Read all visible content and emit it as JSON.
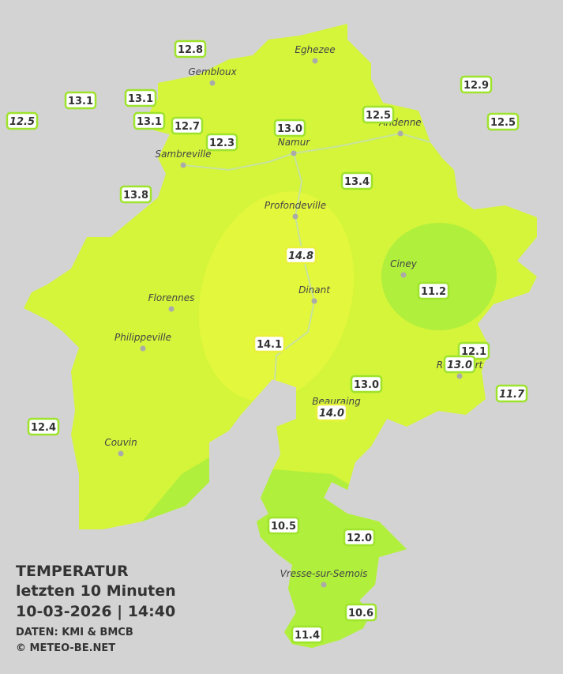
{
  "map": {
    "cities": [
      "Eghezee",
      "Gembloux",
      "Andenne",
      "Namur",
      "Sambreville",
      "Profondeville",
      "Ciney",
      "Florennes",
      "Dinant",
      "Philippeville",
      "Rochefort",
      "Beauraing",
      "Couvin",
      "Vresse-sur-Semois"
    ],
    "stations": [
      {
        "label": "12.8"
      },
      {
        "label": "13.1"
      },
      {
        "label": "13.1"
      },
      {
        "label": "12.5",
        "italic": true
      },
      {
        "label": "13.1"
      },
      {
        "label": "12.7"
      },
      {
        "label": "12.3"
      },
      {
        "label": "13.0"
      },
      {
        "label": "12.5"
      },
      {
        "label": "12.9"
      },
      {
        "label": "12.5"
      },
      {
        "label": "13.8"
      },
      {
        "label": "13.4"
      },
      {
        "label": "14.8",
        "italic": true
      },
      {
        "label": "11.2"
      },
      {
        "label": "14.1"
      },
      {
        "label": "12.1"
      },
      {
        "label": "13.0",
        "italic": true
      },
      {
        "label": "13.0"
      },
      {
        "label": "14.0",
        "italic": true
      },
      {
        "label": "11.7",
        "italic": true
      },
      {
        "label": "12.4"
      },
      {
        "label": "10.5"
      },
      {
        "label": "12.0"
      },
      {
        "label": "10.6"
      },
      {
        "label": "11.4"
      }
    ],
    "legend": {
      "title": "TEMPERATUR",
      "period": "letzten 10 Minuten",
      "timestamp": "10-03-2026  |  14:40",
      "source": "DATEN: KMI & BMCB",
      "copyright": "© METEO-BE.NET"
    }
  }
}
